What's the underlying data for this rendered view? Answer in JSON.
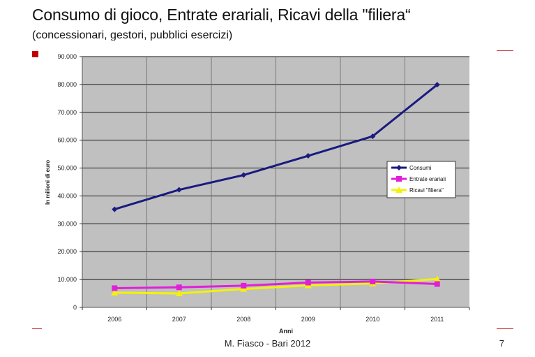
{
  "slide": {
    "title": "Consumo di gioco, Entrate erariali, Ricavi della \"filiera“",
    "subtitle": "(concessionari, gestori, pubblici esercizi)",
    "footer": "M. Fiasco - Bari 2012",
    "page_number": "7",
    "accent_color": "#c00000"
  },
  "chart_data": {
    "type": "line",
    "title": "",
    "xlabel": "Anni",
    "ylabel": "In milioni di euro",
    "categories": [
      "2006",
      "2007",
      "2008",
      "2009",
      "2010",
      "2011"
    ],
    "ylim": [
      0,
      90000
    ],
    "yticks": [
      0,
      10000,
      20000,
      30000,
      40000,
      50000,
      60000,
      70000,
      80000,
      90000
    ],
    "ytick_labels": [
      "0",
      "10.000",
      "20.000",
      "30.000",
      "40.000",
      "50.000",
      "60.000",
      "70.000",
      "80.000",
      "90.000"
    ],
    "grid": true,
    "legend_position": "right",
    "plot_background": "#c0c0c0",
    "series": [
      {
        "name": "Consumi",
        "color": "#1a1a80",
        "marker": "diamond",
        "values": [
          35200,
          42200,
          47500,
          54400,
          61400,
          79900
        ]
      },
      {
        "name": "Entrate erariali",
        "color": "#e020d8",
        "marker": "square",
        "values": [
          6900,
          7200,
          7800,
          8900,
          9300,
          8400
        ]
      },
      {
        "name": "Ricavi \"filiera\"",
        "color": "#f2f20a",
        "marker": "triangle",
        "values": [
          5300,
          5000,
          6600,
          7900,
          8600,
          10200
        ]
      }
    ]
  }
}
